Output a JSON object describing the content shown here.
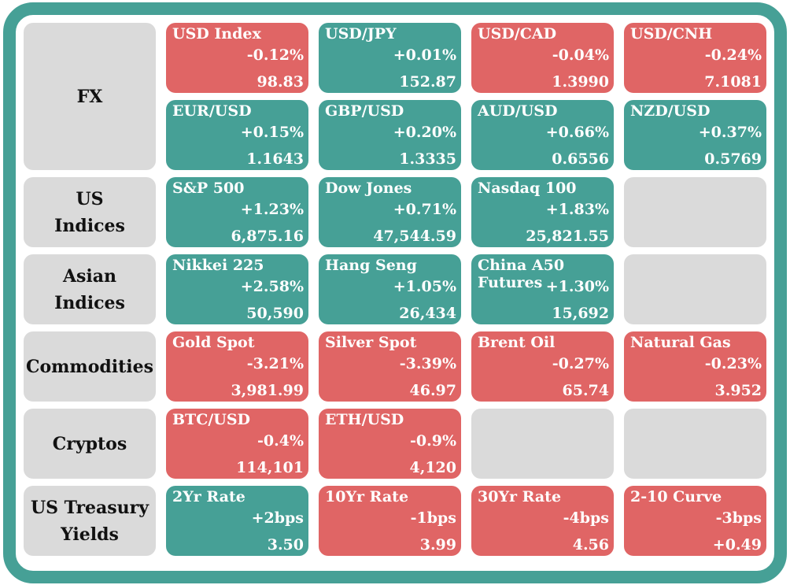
{
  "colors": {
    "frame": "#46a096",
    "up": "#46a096",
    "down": "#e06565",
    "empty": "#dadada",
    "text": "#ffffff"
  },
  "categories": {
    "fx": "FX",
    "us_indices": "US\nIndices",
    "asian_indices": "Asian\nIndices",
    "commodities": "Commodities",
    "cryptos": "Cryptos",
    "us_treasury_yields": "US Treasury\nYields"
  },
  "fx": [
    {
      "name": "USD Index",
      "change": "-0.12%",
      "value": "98.83",
      "direction": "down"
    },
    {
      "name": "USD/JPY",
      "change": "+0.01%",
      "value": "152.87",
      "direction": "up"
    },
    {
      "name": "USD/CAD",
      "change": "-0.04%",
      "value": "1.3990",
      "direction": "down"
    },
    {
      "name": "USD/CNH",
      "change": "-0.24%",
      "value": "7.1081",
      "direction": "down"
    },
    {
      "name": "EUR/USD",
      "change": "+0.15%",
      "value": "1.1643",
      "direction": "up"
    },
    {
      "name": "GBP/USD",
      "change": "+0.20%",
      "value": "1.3335",
      "direction": "up"
    },
    {
      "name": "AUD/USD",
      "change": "+0.66%",
      "value": "0.6556",
      "direction": "up"
    },
    {
      "name": "NZD/USD",
      "change": "+0.37%",
      "value": "0.5769",
      "direction": "up"
    }
  ],
  "us_indices": [
    {
      "name": "S&P 500",
      "change": "+1.23%",
      "value": "6,875.16",
      "direction": "up"
    },
    {
      "name": "Dow Jones",
      "change": "+0.71%",
      "value": "47,544.59",
      "direction": "up"
    },
    {
      "name": "Nasdaq 100",
      "change": "+1.83%",
      "value": "25,821.55",
      "direction": "up"
    }
  ],
  "asian_indices": [
    {
      "name": "Nikkei 225",
      "change": "+2.58%",
      "value": "50,590",
      "direction": "up"
    },
    {
      "name": "Hang Seng",
      "change": "+1.05%",
      "value": "26,434",
      "direction": "up"
    },
    {
      "name": "China A50\nFutures",
      "change": "+1.30%",
      "value": "15,692",
      "direction": "up"
    }
  ],
  "commodities": [
    {
      "name": "Gold Spot",
      "change": "-3.21%",
      "value": "3,981.99",
      "direction": "down"
    },
    {
      "name": "Silver Spot",
      "change": "-3.39%",
      "value": "46.97",
      "direction": "down"
    },
    {
      "name": "Brent Oil",
      "change": "-0.27%",
      "value": "65.74",
      "direction": "down"
    },
    {
      "name": "Natural Gas",
      "change": "-0.23%",
      "value": "3.952",
      "direction": "down"
    }
  ],
  "cryptos": [
    {
      "name": "BTC/USD",
      "change": "-0.4%",
      "value": "114,101",
      "direction": "down"
    },
    {
      "name": "ETH/USD",
      "change": "-0.9%",
      "value": "4,120",
      "direction": "down"
    }
  ],
  "us_treasury_yields": [
    {
      "name": "2Yr Rate",
      "change": "+2bps",
      "value": "3.50",
      "direction": "up"
    },
    {
      "name": "10Yr Rate",
      "change": "-1bps",
      "value": "3.99",
      "direction": "down"
    },
    {
      "name": "30Yr Rate",
      "change": "-4bps",
      "value": "4.56",
      "direction": "down"
    },
    {
      "name": "2-10 Curve",
      "change": "-3bps",
      "value": "+0.49",
      "direction": "down"
    }
  ]
}
